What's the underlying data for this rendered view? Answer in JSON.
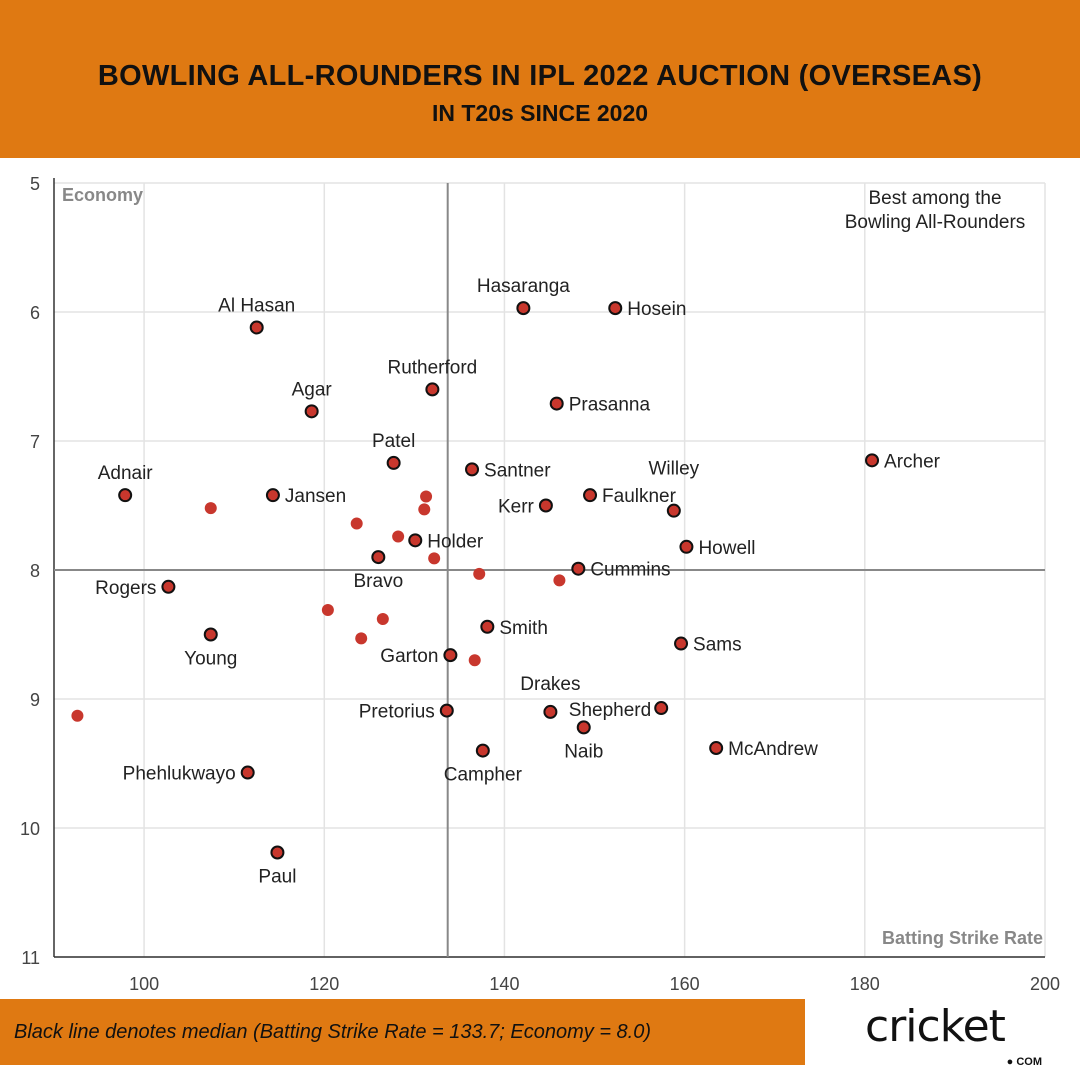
{
  "header": {
    "title": "BOWLING ALL-ROUNDERS IN IPL 2022 AUCTION (OVERSEAS)",
    "subtitle": "IN T20s SINCE 2020"
  },
  "footer": {
    "note": "Black line denotes median (Batting Strike Rate = 133.7; Economy = 8.0)",
    "logo_text": "cricket",
    "logo_suffix": "COM"
  },
  "colors": {
    "header": "#DF7912",
    "point": "#C8372D",
    "median_line": "#888888"
  },
  "chart_data": {
    "type": "scatter",
    "xlabel": "Batting Strike Rate",
    "ylabel": "Economy",
    "xlim": [
      90,
      200
    ],
    "ylim": [
      11,
      5
    ],
    "y_inverted": true,
    "x_ticks": [
      100,
      120,
      140,
      160,
      180,
      200
    ],
    "y_ticks": [
      5,
      6,
      7,
      8,
      9,
      10,
      11
    ],
    "grid": true,
    "median": {
      "x": 133.7,
      "y": 8.0
    },
    "annotation": "Best among the\nBowling All-Rounders",
    "labeled_points": [
      {
        "name": "Al Hasan",
        "x": 112.5,
        "y": 6.12,
        "label": "above"
      },
      {
        "name": "Hasaranga",
        "x": 142.1,
        "y": 5.97,
        "label": "above"
      },
      {
        "name": "Hosein",
        "x": 152.3,
        "y": 5.97,
        "label": "right"
      },
      {
        "name": "Rutherford",
        "x": 132.0,
        "y": 6.6,
        "label": "above"
      },
      {
        "name": "Agar",
        "x": 118.6,
        "y": 6.77,
        "label": "above"
      },
      {
        "name": "Prasanna",
        "x": 145.8,
        "y": 6.71,
        "label": "right"
      },
      {
        "name": "Patel",
        "x": 127.7,
        "y": 7.17,
        "label": "above"
      },
      {
        "name": "Archer",
        "x": 180.8,
        "y": 7.15,
        "label": "right"
      },
      {
        "name": "Adnair",
        "x": 97.9,
        "y": 7.42,
        "label": "above"
      },
      {
        "name": "Jansen",
        "x": 114.3,
        "y": 7.42,
        "label": "right"
      },
      {
        "name": "Santner",
        "x": 136.4,
        "y": 7.22,
        "label": "right"
      },
      {
        "name": "Kerr",
        "x": 144.6,
        "y": 7.5,
        "label": "left"
      },
      {
        "name": "Faulkner",
        "x": 149.5,
        "y": 7.42,
        "label": "right"
      },
      {
        "name": "Willey",
        "x": 158.8,
        "y": 7.54,
        "label": "above"
      },
      {
        "name": "Holder",
        "x": 130.1,
        "y": 7.77,
        "label": "right"
      },
      {
        "name": "Howell",
        "x": 160.2,
        "y": 7.82,
        "label": "right"
      },
      {
        "name": "Bravo",
        "x": 126.0,
        "y": 7.9,
        "label": "below"
      },
      {
        "name": "Cummins",
        "x": 148.2,
        "y": 7.99,
        "label": "right"
      },
      {
        "name": "Rogers",
        "x": 102.7,
        "y": 8.13,
        "label": "left"
      },
      {
        "name": "Smith",
        "x": 138.1,
        "y": 8.44,
        "label": "right"
      },
      {
        "name": "Sams",
        "x": 159.6,
        "y": 8.57,
        "label": "right"
      },
      {
        "name": "Young",
        "x": 107.4,
        "y": 8.5,
        "label": "below"
      },
      {
        "name": "Garton",
        "x": 134.0,
        "y": 8.66,
        "label": "left"
      },
      {
        "name": "Pretorius",
        "x": 133.6,
        "y": 9.09,
        "label": "left"
      },
      {
        "name": "Drakes",
        "x": 145.1,
        "y": 9.1,
        "label": "above"
      },
      {
        "name": "Shepherd",
        "x": 157.4,
        "y": 9.07,
        "label": "left"
      },
      {
        "name": "Naib",
        "x": 148.8,
        "y": 9.22,
        "label": "below"
      },
      {
        "name": "McAndrew",
        "x": 163.5,
        "y": 9.38,
        "label": "right"
      },
      {
        "name": "Campher",
        "x": 137.6,
        "y": 9.4,
        "label": "below"
      },
      {
        "name": "Phehlukwayo",
        "x": 111.5,
        "y": 9.57,
        "label": "left"
      },
      {
        "name": "Paul",
        "x": 114.8,
        "y": 10.19,
        "label": "below"
      }
    ],
    "unlabeled_points": [
      {
        "x": 92.6,
        "y": 9.13
      },
      {
        "x": 107.4,
        "y": 7.52
      },
      {
        "x": 123.6,
        "y": 7.64
      },
      {
        "x": 131.3,
        "y": 7.43
      },
      {
        "x": 131.1,
        "y": 7.53
      },
      {
        "x": 128.2,
        "y": 7.74
      },
      {
        "x": 132.2,
        "y": 7.91
      },
      {
        "x": 137.2,
        "y": 8.03
      },
      {
        "x": 146.1,
        "y": 8.08
      },
      {
        "x": 120.4,
        "y": 8.31
      },
      {
        "x": 126.5,
        "y": 8.38
      },
      {
        "x": 124.1,
        "y": 8.53
      },
      {
        "x": 136.7,
        "y": 8.7
      }
    ]
  }
}
